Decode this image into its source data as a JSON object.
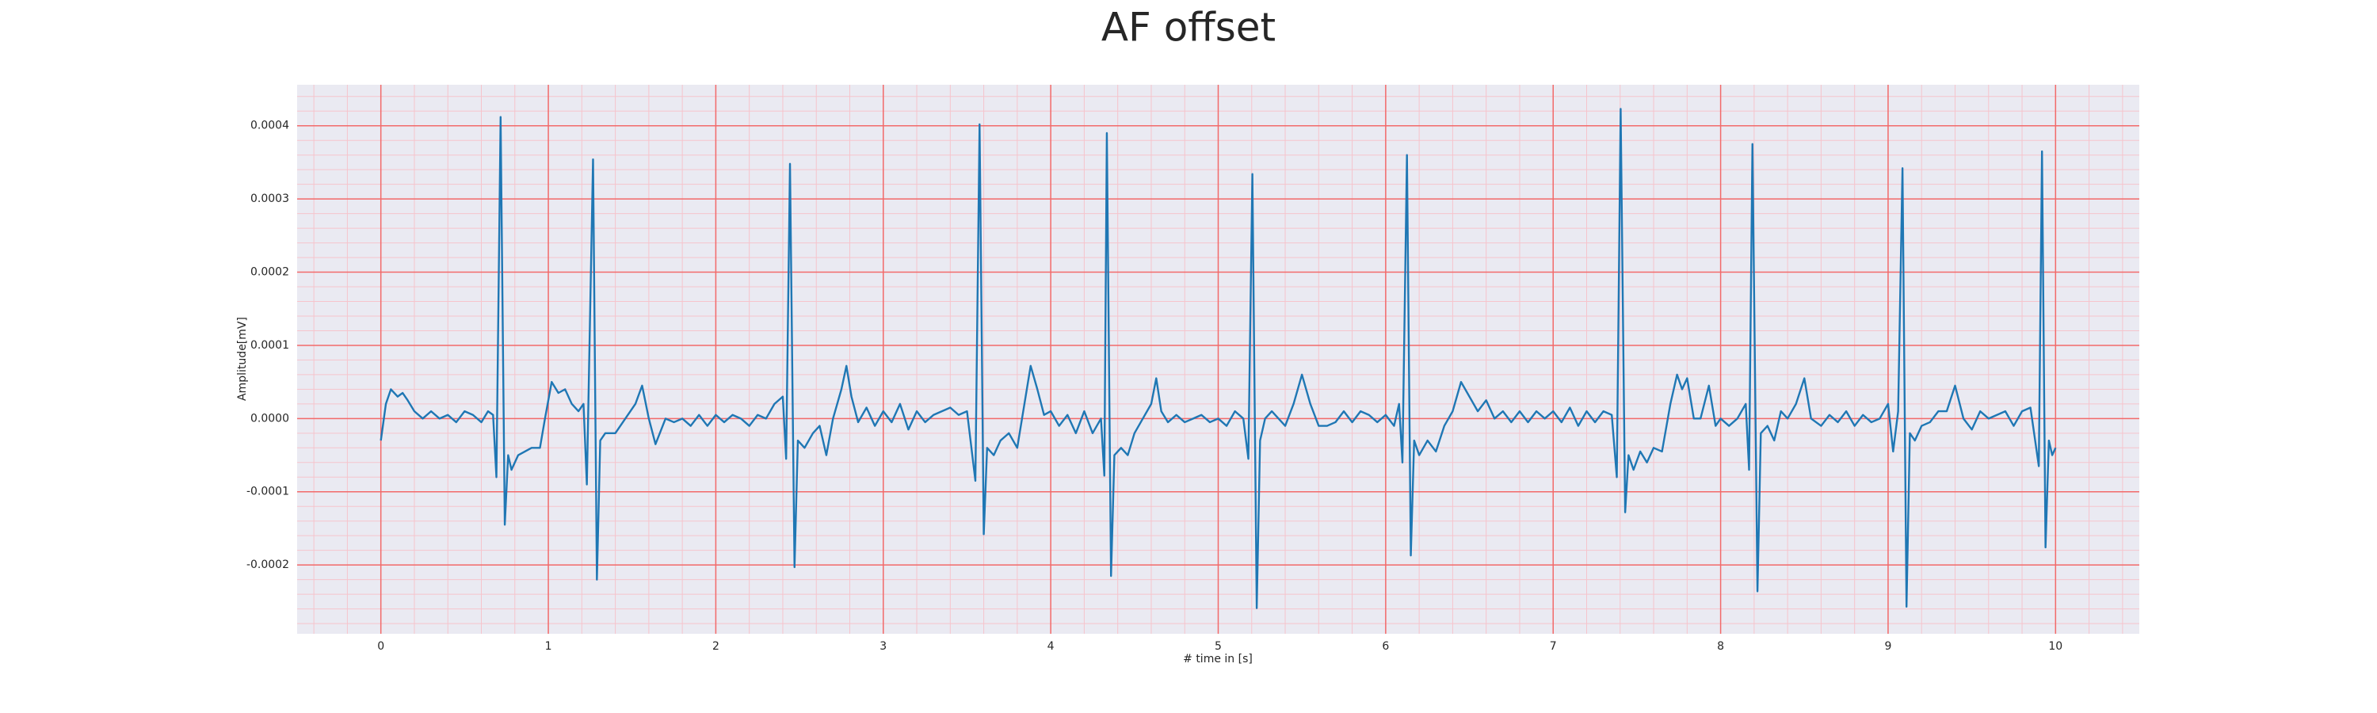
{
  "chart_data": {
    "type": "line",
    "title": "AF offset",
    "xlabel": "# time in [s]",
    "ylabel": "Amplitude[mV]",
    "color": "#1f77b4",
    "background": "#eaeaf2",
    "grid": {
      "major_color": "#f26a6a",
      "minor_color": "#f6c4cc"
    },
    "xlim": [
      -0.5,
      10.5
    ],
    "ylim": [
      -0.000294,
      0.000456
    ],
    "xticks": [
      0,
      1,
      2,
      3,
      4,
      5,
      6,
      7,
      8,
      9,
      10
    ],
    "yticks": [
      {
        "value": -0.0002,
        "label": "-0.0002"
      },
      {
        "value": -0.0001,
        "label": "-0.0001"
      },
      {
        "value": 0,
        "label": "0.0000"
      },
      {
        "value": 0.0001,
        "label": "0.0001"
      },
      {
        "value": 0.0002,
        "label": "0.0002"
      },
      {
        "value": 0.0003,
        "label": "0.0003"
      },
      {
        "value": 0.0004,
        "label": "0.0004"
      }
    ],
    "x": [
      0.0,
      0.03,
      0.06,
      0.1,
      0.13,
      0.16,
      0.2,
      0.25,
      0.3,
      0.35,
      0.4,
      0.45,
      0.5,
      0.55,
      0.6,
      0.64,
      0.67,
      0.69,
      0.715,
      0.74,
      0.76,
      0.78,
      0.82,
      0.86,
      0.9,
      0.95,
      0.98,
      1.02,
      1.06,
      1.1,
      1.14,
      1.18,
      1.21,
      1.23,
      1.267,
      1.29,
      1.31,
      1.34,
      1.4,
      1.46,
      1.52,
      1.56,
      1.6,
      1.64,
      1.7,
      1.75,
      1.8,
      1.85,
      1.9,
      1.95,
      2.0,
      2.05,
      2.1,
      2.15,
      2.2,
      2.25,
      2.3,
      2.35,
      2.4,
      2.42,
      2.443,
      2.47,
      2.49,
      2.53,
      2.58,
      2.62,
      2.66,
      2.7,
      2.75,
      2.78,
      2.81,
      2.85,
      2.9,
      2.95,
      3.0,
      3.05,
      3.1,
      3.15,
      3.2,
      3.25,
      3.3,
      3.35,
      3.4,
      3.45,
      3.5,
      3.55,
      3.575,
      3.6,
      3.62,
      3.66,
      3.7,
      3.75,
      3.8,
      3.85,
      3.88,
      3.92,
      3.96,
      4.0,
      4.05,
      4.1,
      4.15,
      4.2,
      4.25,
      4.3,
      4.32,
      4.335,
      4.36,
      4.38,
      4.42,
      4.46,
      4.5,
      4.55,
      4.6,
      4.63,
      4.66,
      4.7,
      4.75,
      4.8,
      4.85,
      4.9,
      4.95,
      5.0,
      5.05,
      5.1,
      5.15,
      5.18,
      5.204,
      5.23,
      5.25,
      5.28,
      5.32,
      5.36,
      5.4,
      5.45,
      5.5,
      5.55,
      5.6,
      5.65,
      5.7,
      5.75,
      5.8,
      5.85,
      5.9,
      5.95,
      6.0,
      6.05,
      6.08,
      6.1,
      6.127,
      6.15,
      6.17,
      6.2,
      6.25,
      6.3,
      6.35,
      6.4,
      6.45,
      6.5,
      6.55,
      6.6,
      6.65,
      6.7,
      6.75,
      6.8,
      6.85,
      6.9,
      6.95,
      7.0,
      7.05,
      7.1,
      7.15,
      7.2,
      7.25,
      7.3,
      7.35,
      7.38,
      7.403,
      7.43,
      7.45,
      7.48,
      7.52,
      7.56,
      7.6,
      7.65,
      7.7,
      7.74,
      7.77,
      7.8,
      7.84,
      7.88,
      7.93,
      7.97,
      8.0,
      8.05,
      8.1,
      8.15,
      8.17,
      8.19,
      8.22,
      8.24,
      8.28,
      8.32,
      8.36,
      8.4,
      8.45,
      8.5,
      8.54,
      8.6,
      8.65,
      8.7,
      8.75,
      8.8,
      8.85,
      8.9,
      8.95,
      9.0,
      9.03,
      9.06,
      9.086,
      9.11,
      9.13,
      9.16,
      9.2,
      9.25,
      9.3,
      9.35,
      9.4,
      9.45,
      9.5,
      9.55,
      9.6,
      9.65,
      9.7,
      9.75,
      9.8,
      9.85,
      9.9,
      9.919,
      9.94,
      9.96,
      9.98,
      10.0
    ],
    "values": [
      -3e-05,
      2e-05,
      4e-05,
      3e-05,
      3.5e-05,
      2.5e-05,
      1e-05,
      0,
      1e-05,
      0,
      5e-06,
      -5e-06,
      1e-05,
      5e-06,
      -5e-06,
      1e-05,
      5e-06,
      -8e-05,
      0.000412,
      -0.000145,
      -5e-05,
      -7e-05,
      -5e-05,
      -4.5e-05,
      -4e-05,
      -4e-05,
      0,
      5e-05,
      3.5e-05,
      4e-05,
      2e-05,
      1e-05,
      2e-05,
      -9e-05,
      0.000354,
      -0.00022,
      -3e-05,
      -2e-05,
      -2e-05,
      0,
      2e-05,
      4.5e-05,
      0,
      -3.5e-05,
      0,
      -5e-06,
      0,
      -1e-05,
      5e-06,
      -1e-05,
      5e-06,
      -5e-06,
      5e-06,
      0,
      -1e-05,
      5e-06,
      0,
      2e-05,
      3e-05,
      -5.5e-05,
      0.000348,
      -0.000203,
      -3e-05,
      -4e-05,
      -2e-05,
      -1e-05,
      -5e-05,
      0,
      4e-05,
      7.2e-05,
      3e-05,
      -5e-06,
      1.5e-05,
      -1e-05,
      1e-05,
      -5e-06,
      2e-05,
      -1.5e-05,
      1e-05,
      -5e-06,
      5e-06,
      1e-05,
      1.5e-05,
      5e-06,
      1e-05,
      -8.5e-05,
      0.000402,
      -0.000158,
      -4e-05,
      -5e-05,
      -3e-05,
      -2e-05,
      -4e-05,
      3e-05,
      7.2e-05,
      4e-05,
      5e-06,
      1e-05,
      -1e-05,
      5e-06,
      -2e-05,
      1e-05,
      -2e-05,
      0,
      -7.8e-05,
      0.00039,
      -0.000215,
      -5e-05,
      -4e-05,
      -5e-05,
      -2e-05,
      0,
      2e-05,
      5.5e-05,
      1e-05,
      -5e-06,
      5e-06,
      -5e-06,
      0,
      5e-06,
      -5e-06,
      0,
      -1e-05,
      1e-05,
      0,
      -5.5e-05,
      0.000334,
      -0.000259,
      -3e-05,
      0,
      1e-05,
      0,
      -1e-05,
      2e-05,
      6e-05,
      2e-05,
      -1e-05,
      -1e-05,
      -5e-06,
      1e-05,
      -5e-06,
      1e-05,
      5e-06,
      -5e-06,
      5e-06,
      -1e-05,
      2e-05,
      -6e-05,
      0.00036,
      -0.000187,
      -3e-05,
      -5e-05,
      -3e-05,
      -4.5e-05,
      -1e-05,
      1e-05,
      5e-05,
      3e-05,
      1e-05,
      2.5e-05,
      0,
      1e-05,
      -5e-06,
      1e-05,
      -5e-06,
      1e-05,
      0,
      1e-05,
      -5e-06,
      1.5e-05,
      -1e-05,
      1e-05,
      -5e-06,
      1e-05,
      5e-06,
      -8e-05,
      0.000423,
      -0.000128,
      -5e-05,
      -7e-05,
      -4.5e-05,
      -6e-05,
      -4e-05,
      -4.5e-05,
      2e-05,
      6e-05,
      4e-05,
      5.5e-05,
      0,
      0,
      4.5e-05,
      -1e-05,
      0,
      -1e-05,
      0,
      2e-05,
      -7e-05,
      0.000375,
      -0.000236,
      -2e-05,
      -1e-05,
      -3e-05,
      1e-05,
      0,
      2e-05,
      5.5e-05,
      0,
      -1e-05,
      5e-06,
      -5e-06,
      1e-05,
      -1e-05,
      5e-06,
      -5e-06,
      0,
      2e-05,
      -4.5e-05,
      1e-05,
      0.000342,
      -0.000257,
      -2e-05,
      -3e-05,
      -1e-05,
      -5e-06,
      1e-05,
      1e-05,
      4.5e-05,
      0,
      -1.5e-05,
      1e-05,
      0,
      5e-06,
      1e-05,
      -1e-05,
      1e-05,
      1.5e-05,
      -6.5e-05,
      0.000365,
      -0.000176,
      -3e-05,
      -5e-05,
      -4e-05
    ]
  }
}
